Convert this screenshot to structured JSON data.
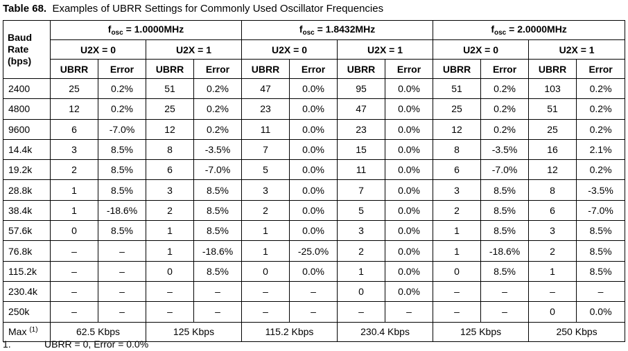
{
  "caption": {
    "label": "Table 68.",
    "text": "Examples of UBRR Settings for Commonly Used Oscillator Frequencies"
  },
  "header": {
    "baud_line1": "Baud",
    "baud_line2": "Rate",
    "baud_line3": "(bps)",
    "fosc_prefix": "f",
    "fosc_sub": "osc",
    "groups": [
      {
        "freq": " = 1.0000MHz"
      },
      {
        "freq": " = 1.8432MHz"
      },
      {
        "freq": " = 2.0000MHz"
      }
    ],
    "u2x0": "U2X = 0",
    "u2x1": "U2X = 1",
    "ubrr": "UBRR",
    "error": "Error"
  },
  "rows": [
    {
      "baud": "2400",
      "c": [
        "25",
        "0.2%",
        "51",
        "0.2%",
        "47",
        "0.0%",
        "95",
        "0.0%",
        "51",
        "0.2%",
        "103",
        "0.2%"
      ]
    },
    {
      "baud": "4800",
      "c": [
        "12",
        "0.2%",
        "25",
        "0.2%",
        "23",
        "0.0%",
        "47",
        "0.0%",
        "25",
        "0.2%",
        "51",
        "0.2%"
      ]
    },
    {
      "baud": "9600",
      "c": [
        "6",
        "-7.0%",
        "12",
        "0.2%",
        "11",
        "0.0%",
        "23",
        "0.0%",
        "12",
        "0.2%",
        "25",
        "0.2%"
      ]
    },
    {
      "baud": "14.4k",
      "c": [
        "3",
        "8.5%",
        "8",
        "-3.5%",
        "7",
        "0.0%",
        "15",
        "0.0%",
        "8",
        "-3.5%",
        "16",
        "2.1%"
      ]
    },
    {
      "baud": "19.2k",
      "c": [
        "2",
        "8.5%",
        "6",
        "-7.0%",
        "5",
        "0.0%",
        "11",
        "0.0%",
        "6",
        "-7.0%",
        "12",
        "0.2%"
      ]
    },
    {
      "baud": "28.8k",
      "c": [
        "1",
        "8.5%",
        "3",
        "8.5%",
        "3",
        "0.0%",
        "7",
        "0.0%",
        "3",
        "8.5%",
        "8",
        "-3.5%"
      ]
    },
    {
      "baud": "38.4k",
      "c": [
        "1",
        "-18.6%",
        "2",
        "8.5%",
        "2",
        "0.0%",
        "5",
        "0.0%",
        "2",
        "8.5%",
        "6",
        "-7.0%"
      ]
    },
    {
      "baud": "57.6k",
      "c": [
        "0",
        "8.5%",
        "1",
        "8.5%",
        "1",
        "0.0%",
        "3",
        "0.0%",
        "1",
        "8.5%",
        "3",
        "8.5%"
      ]
    },
    {
      "baud": "76.8k",
      "c": [
        "–",
        "–",
        "1",
        "-18.6%",
        "1",
        "-25.0%",
        "2",
        "0.0%",
        "1",
        "-18.6%",
        "2",
        "8.5%"
      ]
    },
    {
      "baud": "115.2k",
      "c": [
        "–",
        "–",
        "0",
        "8.5%",
        "0",
        "0.0%",
        "1",
        "0.0%",
        "0",
        "8.5%",
        "1",
        "8.5%"
      ]
    },
    {
      "baud": "230.4k",
      "c": [
        "–",
        "–",
        "–",
        "–",
        "–",
        "–",
        "0",
        "0.0%",
        "–",
        "–",
        "–",
        "–"
      ]
    },
    {
      "baud": "250k",
      "c": [
        "–",
        "–",
        "–",
        "–",
        "–",
        "–",
        "–",
        "–",
        "–",
        "–",
        "0",
        "0.0%"
      ]
    }
  ],
  "max_row": {
    "label": "Max",
    "note_ref": "(1)",
    "values": [
      "62.5 Kbps",
      "125 Kbps",
      "115.2 Kbps",
      "230.4 Kbps",
      "125 Kbps",
      "250 Kbps"
    ]
  },
  "footnote": {
    "number": "1.",
    "text": "UBRR = 0, Error = 0.0%"
  }
}
